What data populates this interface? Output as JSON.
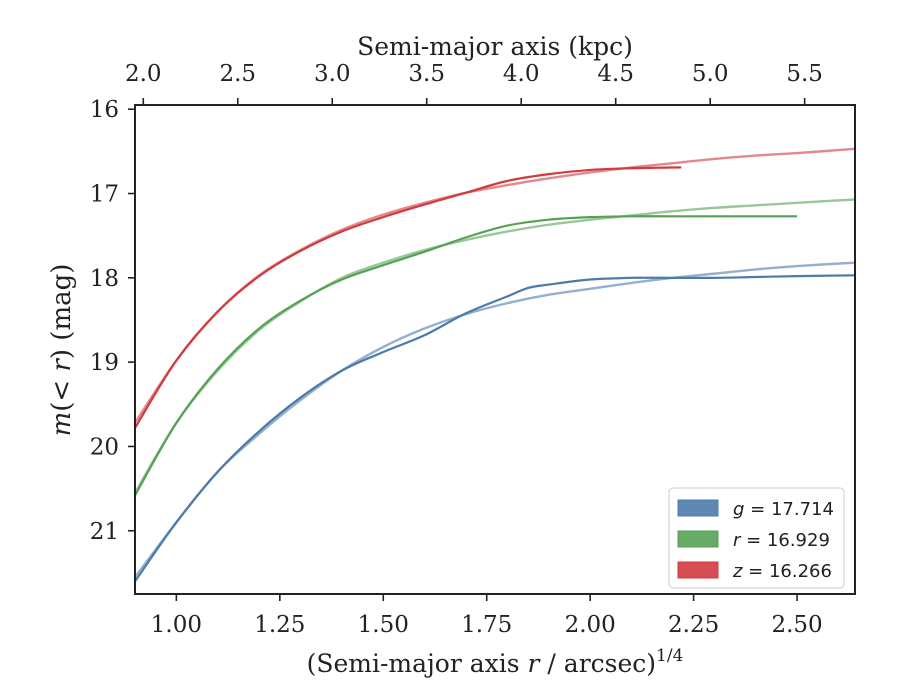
{
  "chart_data": {
    "type": "line",
    "title": "",
    "xlabel_prefix": "(Semi-major axis ",
    "xlabel_var": "r",
    "xlabel_suffix": " / arcsec)",
    "xlabel_power": "1/4",
    "xlabel_top": "Semi-major axis (kpc)",
    "ylabel_m": "m",
    "ylabel_open": "(",
    "ylabel_lt": "< ",
    "ylabel_r": "r",
    "ylabel_close": ")",
    "ylabel_unit": " (mag)",
    "xlim": [
      0.9,
      2.64
    ],
    "ylim": [
      21.75,
      15.95
    ],
    "xticks": [
      1.0,
      1.25,
      1.5,
      1.75,
      2.0,
      2.25,
      2.5
    ],
    "xtick_labels": [
      "1.00",
      "1.25",
      "1.50",
      "1.75",
      "2.00",
      "2.25",
      "2.50"
    ],
    "yticks": [
      16,
      17,
      18,
      19,
      20,
      21
    ],
    "ytick_labels": [
      "16",
      "17",
      "18",
      "19",
      "20",
      "21"
    ],
    "top_ticks_kpc": [
      2.0,
      2.5,
      3.0,
      3.5,
      4.0,
      4.5,
      5.0,
      5.5
    ],
    "top_tick_labels": [
      "2.0",
      "2.5",
      "3.0",
      "3.5",
      "4.0",
      "4.5",
      "5.0",
      "5.5"
    ],
    "kpc_to_x": {
      "x_at_2kpc": 0.92,
      "x_at_5kpc": 2.29
    },
    "legend_location": "lower-right",
    "series": [
      {
        "name": "g",
        "legend_var": "g",
        "legend_value": " = 17.714",
        "color": "#4c7bab",
        "model": {
          "x": [
            0.9,
            1.0,
            1.1,
            1.2,
            1.3,
            1.4,
            1.5,
            1.6,
            1.7,
            1.8,
            1.9,
            2.0,
            2.1,
            2.2,
            2.3,
            2.4,
            2.5,
            2.64
          ],
          "y": [
            21.55,
            20.9,
            20.3,
            19.85,
            19.45,
            19.1,
            18.82,
            18.6,
            18.43,
            18.3,
            18.2,
            18.13,
            18.06,
            18.0,
            17.95,
            17.9,
            17.86,
            17.82
          ]
        },
        "observed": {
          "x": [
            0.9,
            1.0,
            1.1,
            1.2,
            1.3,
            1.4,
            1.5,
            1.6,
            1.7,
            1.8,
            1.85,
            1.9,
            2.0,
            2.1,
            2.2,
            2.3,
            2.4,
            2.5,
            2.64
          ],
          "y": [
            21.6,
            20.9,
            20.3,
            19.82,
            19.42,
            19.1,
            18.88,
            18.68,
            18.42,
            18.22,
            18.12,
            18.08,
            18.02,
            18.0,
            18.0,
            18.0,
            17.99,
            17.98,
            17.97
          ]
        }
      },
      {
        "name": "r",
        "legend_var": "r",
        "legend_value": " = 16.929",
        "color": "#55a255",
        "model": {
          "x": [
            0.9,
            1.0,
            1.1,
            1.2,
            1.3,
            1.4,
            1.5,
            1.6,
            1.7,
            1.8,
            1.9,
            2.0,
            2.1,
            2.2,
            2.3,
            2.4,
            2.5,
            2.64
          ],
          "y": [
            20.55,
            19.72,
            19.1,
            18.62,
            18.28,
            18.0,
            17.82,
            17.67,
            17.55,
            17.45,
            17.37,
            17.31,
            17.26,
            17.21,
            17.17,
            17.14,
            17.11,
            17.07
          ]
        },
        "observed": {
          "x": [
            0.9,
            1.0,
            1.1,
            1.2,
            1.3,
            1.4,
            1.5,
            1.6,
            1.7,
            1.8,
            1.9,
            2.0,
            2.1,
            2.2,
            2.3,
            2.4,
            2.5
          ],
          "y": [
            20.58,
            19.72,
            19.08,
            18.6,
            18.27,
            18.02,
            17.85,
            17.69,
            17.52,
            17.38,
            17.31,
            17.28,
            17.27,
            17.27,
            17.27,
            17.27,
            17.27
          ]
        }
      },
      {
        "name": "z",
        "legend_var": "z",
        "legend_value": " = 16.266",
        "color": "#d13b40",
        "model": {
          "x": [
            0.9,
            1.0,
            1.1,
            1.2,
            1.3,
            1.4,
            1.5,
            1.6,
            1.7,
            1.8,
            1.9,
            2.0,
            2.1,
            2.2,
            2.3,
            2.4,
            2.5,
            2.64
          ],
          "y": [
            19.72,
            18.98,
            18.4,
            17.97,
            17.67,
            17.43,
            17.25,
            17.11,
            16.99,
            16.9,
            16.82,
            16.75,
            16.69,
            16.64,
            16.59,
            16.55,
            16.52,
            16.47
          ]
        },
        "observed": {
          "x": [
            0.9,
            1.0,
            1.1,
            1.2,
            1.3,
            1.4,
            1.5,
            1.6,
            1.7,
            1.8,
            1.9,
            2.0,
            2.1,
            2.22
          ],
          "y": [
            19.78,
            18.98,
            18.4,
            17.98,
            17.68,
            17.45,
            17.28,
            17.13,
            16.99,
            16.85,
            16.77,
            16.72,
            16.7,
            16.69
          ]
        }
      }
    ]
  }
}
